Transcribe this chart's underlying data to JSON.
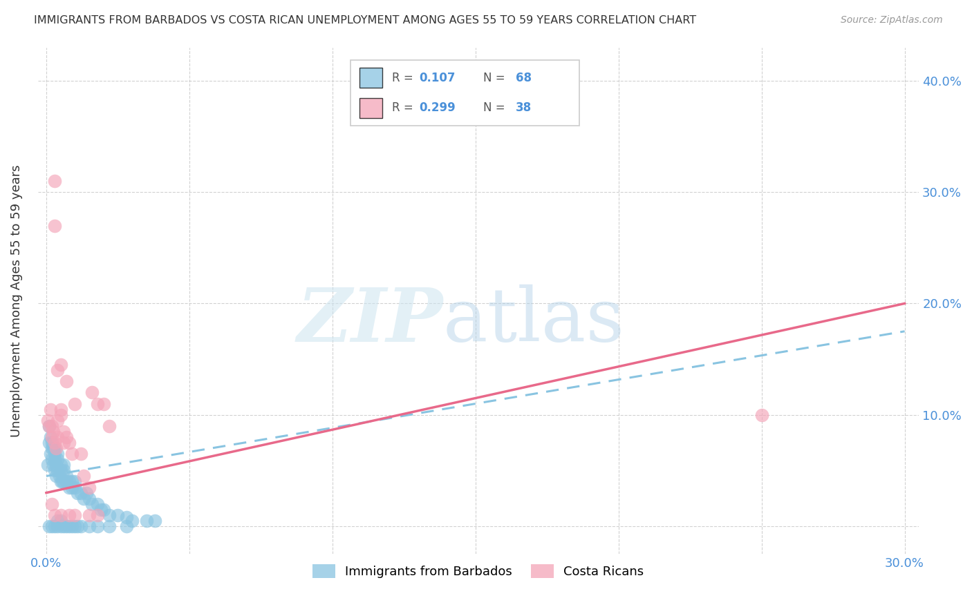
{
  "title": "IMMIGRANTS FROM BARBADOS VS COSTA RICAN UNEMPLOYMENT AMONG AGES 55 TO 59 YEARS CORRELATION CHART",
  "source": "Source: ZipAtlas.com",
  "ylabel": "Unemployment Among Ages 55 to 59 years",
  "xlim_min": -0.003,
  "xlim_max": 0.305,
  "ylim_min": -0.025,
  "ylim_max": 0.43,
  "x_ticks": [
    0.0,
    0.05,
    0.1,
    0.15,
    0.2,
    0.25,
    0.3
  ],
  "x_tick_labels": [
    "0.0%",
    "",
    "",
    "",
    "",
    "",
    "30.0%"
  ],
  "y_ticks": [
    0.0,
    0.1,
    0.2,
    0.3,
    0.4
  ],
  "y_tick_labels_right": [
    "",
    "10.0%",
    "20.0%",
    "30.0%",
    "40.0%"
  ],
  "legend_R1": "0.107",
  "legend_N1": "68",
  "legend_R2": "0.299",
  "legend_N2": "38",
  "color_blue": "#89c4e1",
  "color_pink": "#f4a4b8",
  "color_blue_line": "#89c4e1",
  "color_pink_line": "#e8698a",
  "color_blue_text": "#4a90d9",
  "color_axis_text": "#4a90d9",
  "blue_line_x0": 0.0,
  "blue_line_y0": 0.045,
  "blue_line_x1": 0.3,
  "blue_line_y1": 0.175,
  "pink_line_x0": 0.0,
  "pink_line_y0": 0.03,
  "pink_line_x1": 0.3,
  "pink_line_y1": 0.2,
  "blue_points_x": [
    0.0005,
    0.001,
    0.001,
    0.0015,
    0.0015,
    0.002,
    0.002,
    0.002,
    0.0025,
    0.0025,
    0.003,
    0.003,
    0.003,
    0.003,
    0.0035,
    0.0035,
    0.004,
    0.004,
    0.004,
    0.0045,
    0.005,
    0.005,
    0.005,
    0.0055,
    0.006,
    0.006,
    0.006,
    0.007,
    0.007,
    0.008,
    0.008,
    0.009,
    0.009,
    0.01,
    0.01,
    0.011,
    0.012,
    0.013,
    0.014,
    0.015,
    0.016,
    0.018,
    0.019,
    0.02,
    0.022,
    0.025,
    0.028,
    0.03,
    0.035,
    0.038,
    0.001,
    0.002,
    0.003,
    0.004,
    0.004,
    0.005,
    0.005,
    0.006,
    0.007,
    0.008,
    0.009,
    0.01,
    0.011,
    0.012,
    0.015,
    0.018,
    0.022,
    0.028
  ],
  "blue_points_y": [
    0.055,
    0.075,
    0.09,
    0.065,
    0.08,
    0.06,
    0.07,
    0.075,
    0.055,
    0.07,
    0.05,
    0.06,
    0.065,
    0.07,
    0.045,
    0.055,
    0.05,
    0.06,
    0.065,
    0.045,
    0.04,
    0.05,
    0.055,
    0.04,
    0.04,
    0.05,
    0.055,
    0.04,
    0.045,
    0.035,
    0.04,
    0.035,
    0.04,
    0.035,
    0.04,
    0.03,
    0.03,
    0.025,
    0.03,
    0.025,
    0.02,
    0.02,
    0.015,
    0.015,
    0.01,
    0.01,
    0.008,
    0.005,
    0.005,
    0.005,
    0.0,
    0.0,
    0.0,
    0.0,
    0.005,
    0.0,
    0.005,
    0.0,
    0.0,
    0.0,
    0.0,
    0.0,
    0.0,
    0.0,
    0.0,
    0.0,
    0.0,
    0.0
  ],
  "pink_points_x": [
    0.0005,
    0.001,
    0.0015,
    0.002,
    0.002,
    0.0025,
    0.003,
    0.003,
    0.0035,
    0.004,
    0.004,
    0.005,
    0.005,
    0.006,
    0.006,
    0.007,
    0.008,
    0.009,
    0.01,
    0.012,
    0.013,
    0.015,
    0.016,
    0.018,
    0.02,
    0.022,
    0.003,
    0.004,
    0.005,
    0.007,
    0.002,
    0.003,
    0.005,
    0.008,
    0.01,
    0.015,
    0.018,
    0.25
  ],
  "pink_points_y": [
    0.095,
    0.09,
    0.105,
    0.08,
    0.09,
    0.085,
    0.075,
    0.31,
    0.07,
    0.08,
    0.095,
    0.1,
    0.105,
    0.075,
    0.085,
    0.08,
    0.075,
    0.065,
    0.11,
    0.065,
    0.045,
    0.035,
    0.12,
    0.11,
    0.11,
    0.09,
    0.27,
    0.14,
    0.145,
    0.13,
    0.02,
    0.01,
    0.01,
    0.01,
    0.01,
    0.01,
    0.01,
    0.1
  ]
}
